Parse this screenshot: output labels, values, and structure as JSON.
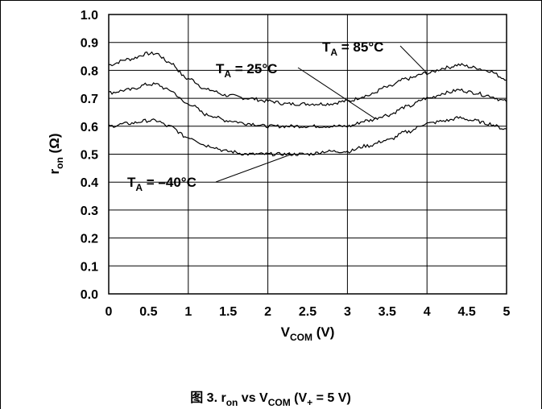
{
  "chart_data": {
    "type": "line",
    "title": "",
    "xlabel": {
      "main": "V",
      "sub": "COM",
      "rest": " (V)"
    },
    "ylabel": {
      "main": "r",
      "sub": "on",
      "rest": " (Ω)"
    },
    "xlim": [
      0,
      5
    ],
    "ylim": [
      0,
      1.0
    ],
    "x_ticks": [
      0,
      0.5,
      1,
      1.5,
      2,
      2.5,
      3,
      3.5,
      4,
      4.5,
      5
    ],
    "x_tick_labels": [
      "0",
      "0.5",
      "1",
      "1.5",
      "2",
      "2.5",
      "3",
      "3.5",
      "4",
      "4.5",
      "5"
    ],
    "y_ticks": [
      0,
      0.1,
      0.2,
      0.3,
      0.4,
      0.5,
      0.6,
      0.7,
      0.8,
      0.9,
      1.0
    ],
    "y_tick_labels": [
      "0.0",
      "0.1",
      "0.2",
      "0.3",
      "0.4",
      "0.5",
      "0.6",
      "0.7",
      "0.8",
      "0.9",
      "1.0"
    ],
    "grid": true,
    "series": [
      {
        "name_main": "T",
        "name_sub": "A",
        "name_rest": " = 85°C",
        "x": [
          0,
          0.25,
          0.5,
          0.6,
          0.75,
          1.0,
          1.25,
          1.5,
          1.75,
          2.0,
          2.25,
          2.5,
          2.75,
          3.0,
          3.25,
          3.5,
          3.75,
          4.0,
          4.25,
          4.4,
          4.6,
          4.75,
          5.0
        ],
        "y": [
          0.82,
          0.84,
          0.86,
          0.86,
          0.83,
          0.77,
          0.73,
          0.71,
          0.7,
          0.69,
          0.68,
          0.68,
          0.68,
          0.69,
          0.71,
          0.74,
          0.77,
          0.79,
          0.81,
          0.82,
          0.81,
          0.8,
          0.77
        ]
      },
      {
        "name_main": "T",
        "name_sub": "A",
        "name_rest": " = 25°C",
        "x": [
          0,
          0.25,
          0.5,
          0.6,
          0.75,
          1.0,
          1.25,
          1.5,
          1.75,
          2.0,
          2.25,
          2.5,
          2.75,
          3.0,
          3.25,
          3.5,
          3.75,
          4.0,
          4.25,
          4.4,
          4.6,
          4.75,
          5.0
        ],
        "y": [
          0.72,
          0.73,
          0.75,
          0.75,
          0.73,
          0.68,
          0.64,
          0.62,
          0.61,
          0.6,
          0.6,
          0.6,
          0.6,
          0.6,
          0.62,
          0.64,
          0.67,
          0.7,
          0.72,
          0.73,
          0.72,
          0.71,
          0.69
        ]
      },
      {
        "name_main": "T",
        "name_sub": "A",
        "name_rest": " = –40°C",
        "x": [
          0,
          0.25,
          0.5,
          0.6,
          0.75,
          1.0,
          1.25,
          1.5,
          1.75,
          2.0,
          2.25,
          2.5,
          2.75,
          3.0,
          3.25,
          3.5,
          3.75,
          4.0,
          4.25,
          4.4,
          4.6,
          4.75,
          5.0
        ],
        "y": [
          0.6,
          0.61,
          0.62,
          0.62,
          0.6,
          0.56,
          0.53,
          0.51,
          0.5,
          0.5,
          0.5,
          0.5,
          0.51,
          0.51,
          0.53,
          0.55,
          0.58,
          0.61,
          0.62,
          0.63,
          0.62,
          0.61,
          0.59
        ]
      }
    ],
    "caption": {
      "prefix": "图 3. r",
      "sub1": "on",
      "mid": " vs V",
      "sub2": "COM",
      "rest1": " (V",
      "sub3": "+",
      "rest2": " = 5 V)"
    }
  }
}
